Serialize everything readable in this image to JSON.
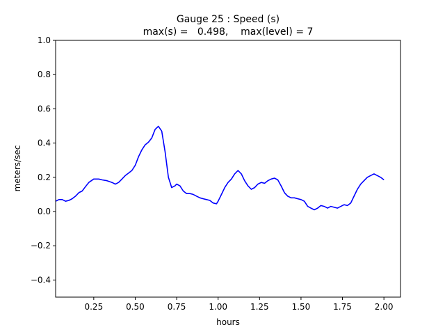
{
  "chart_data": {
    "type": "line",
    "title_line1": "Gauge 25 : Speed (s)",
    "title_line2": "max(s) =   0.498,    max(level) = 7",
    "xlabel": "hours",
    "ylabel": "meters/sec",
    "xlim": [
      0.02,
      2.1
    ],
    "ylim": [
      -0.5,
      1.0
    ],
    "xticks": [
      0.25,
      0.5,
      0.75,
      1.0,
      1.25,
      1.5,
      1.75,
      2.0
    ],
    "xtick_labels": [
      "0.25",
      "0.50",
      "0.75",
      "1.00",
      "1.25",
      "1.50",
      "1.75",
      "2.00"
    ],
    "yticks": [
      -0.4,
      -0.2,
      0.0,
      0.2,
      0.4,
      0.6,
      0.8,
      1.0
    ],
    "ytick_labels": [
      "−0.4",
      "−0.2",
      "0.0",
      "0.2",
      "0.4",
      "0.6",
      "0.8",
      "1.0"
    ],
    "grid": false,
    "legend": "none",
    "series": [
      {
        "color": "#0000ff",
        "x": [
          0.02,
          0.04,
          0.06,
          0.08,
          0.1,
          0.12,
          0.14,
          0.16,
          0.18,
          0.2,
          0.22,
          0.25,
          0.28,
          0.3,
          0.33,
          0.36,
          0.38,
          0.4,
          0.42,
          0.44,
          0.46,
          0.48,
          0.5,
          0.52,
          0.54,
          0.56,
          0.58,
          0.6,
          0.62,
          0.64,
          0.66,
          0.68,
          0.7,
          0.72,
          0.74,
          0.75,
          0.77,
          0.79,
          0.81,
          0.83,
          0.85,
          0.87,
          0.89,
          0.91,
          0.93,
          0.95,
          0.97,
          0.99,
          1.0,
          1.02,
          1.04,
          1.06,
          1.08,
          1.1,
          1.12,
          1.14,
          1.16,
          1.18,
          1.2,
          1.22,
          1.24,
          1.26,
          1.28,
          1.3,
          1.32,
          1.34,
          1.36,
          1.38,
          1.4,
          1.42,
          1.44,
          1.46,
          1.48,
          1.5,
          1.52,
          1.54,
          1.56,
          1.58,
          1.6,
          1.62,
          1.64,
          1.66,
          1.68,
          1.7,
          1.72,
          1.74,
          1.76,
          1.78,
          1.8,
          1.82,
          1.84,
          1.86,
          1.88,
          1.9,
          1.92,
          1.94,
          1.96,
          1.98,
          2.0
        ],
        "y": [
          0.06,
          0.07,
          0.07,
          0.06,
          0.065,
          0.075,
          0.09,
          0.11,
          0.12,
          0.145,
          0.17,
          0.19,
          0.19,
          0.185,
          0.18,
          0.17,
          0.16,
          0.17,
          0.19,
          0.21,
          0.225,
          0.24,
          0.27,
          0.32,
          0.36,
          0.39,
          0.405,
          0.43,
          0.48,
          0.498,
          0.47,
          0.35,
          0.2,
          0.14,
          0.15,
          0.16,
          0.15,
          0.12,
          0.105,
          0.105,
          0.1,
          0.09,
          0.08,
          0.075,
          0.07,
          0.065,
          0.05,
          0.045,
          0.06,
          0.1,
          0.14,
          0.17,
          0.19,
          0.22,
          0.24,
          0.22,
          0.18,
          0.15,
          0.13,
          0.14,
          0.16,
          0.17,
          0.165,
          0.18,
          0.19,
          0.195,
          0.185,
          0.15,
          0.11,
          0.09,
          0.08,
          0.08,
          0.075,
          0.07,
          0.06,
          0.03,
          0.02,
          0.01,
          0.02,
          0.035,
          0.03,
          0.02,
          0.03,
          0.025,
          0.02,
          0.03,
          0.04,
          0.035,
          0.05,
          0.09,
          0.13,
          0.16,
          0.18,
          0.2,
          0.21,
          0.22,
          0.21,
          0.2,
          0.185
        ]
      }
    ]
  }
}
